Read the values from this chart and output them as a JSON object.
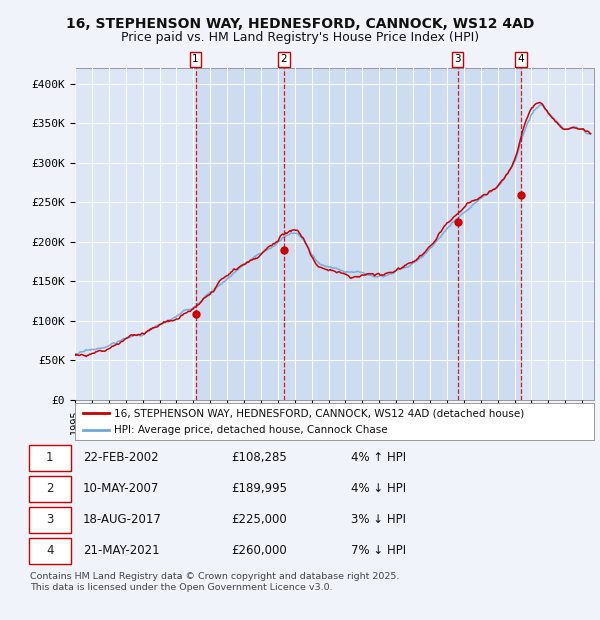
{
  "title_line1": "16, STEPHENSON WAY, HEDNESFORD, CANNOCK, WS12 4AD",
  "title_line2": "Price paid vs. HM Land Registry's House Price Index (HPI)",
  "ylim": [
    0,
    420000
  ],
  "yticks": [
    0,
    50000,
    100000,
    150000,
    200000,
    250000,
    300000,
    350000,
    400000
  ],
  "ytick_labels": [
    "£0",
    "£50K",
    "£100K",
    "£150K",
    "£200K",
    "£250K",
    "£300K",
    "£350K",
    "£400K"
  ],
  "background_color": "#f0f4fa",
  "plot_bg_color": "#dce6f5",
  "shade_color": "#c8d8ee",
  "grid_color": "#ffffff",
  "hpi_color": "#6fa8dc",
  "price_color": "#cc0000",
  "transactions": [
    {
      "num": 1,
      "date": "22-FEB-2002",
      "price": 108285,
      "year": 2002.13
    },
    {
      "num": 2,
      "date": "10-MAY-2007",
      "price": 189995,
      "year": 2007.36
    },
    {
      "num": 3,
      "date": "18-AUG-2017",
      "price": 225000,
      "year": 2017.63
    },
    {
      "num": 4,
      "date": "21-MAY-2021",
      "price": 260000,
      "year": 2021.39
    }
  ],
  "legend_line1": "16, STEPHENSON WAY, HEDNESFORD, CANNOCK, WS12 4AD (detached house)",
  "legend_line2": "HPI: Average price, detached house, Cannock Chase",
  "footer": "Contains HM Land Registry data © Crown copyright and database right 2025.\nThis data is licensed under the Open Government Licence v3.0.",
  "table_rows": [
    [
      "1",
      "22-FEB-2002",
      "£108,285",
      "4% ↑ HPI"
    ],
    [
      "2",
      "10-MAY-2007",
      "£189,995",
      "4% ↓ HPI"
    ],
    [
      "3",
      "18-AUG-2017",
      "£225,000",
      "3% ↓ HPI"
    ],
    [
      "4",
      "21-MAY-2021",
      "£260,000",
      "7% ↓ HPI"
    ]
  ],
  "xmin": 1995.0,
  "xmax": 2025.7
}
